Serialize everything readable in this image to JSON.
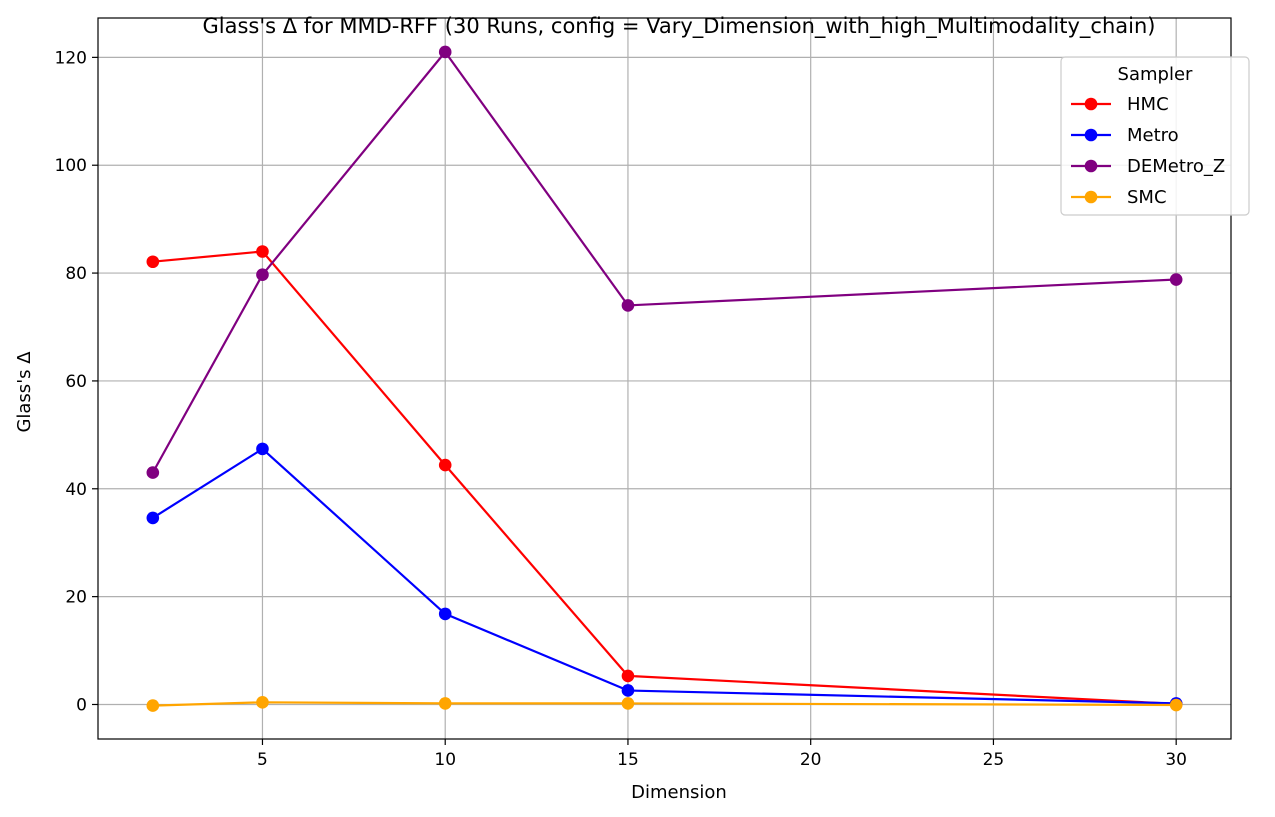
{
  "chart_data": {
    "type": "line",
    "title": "Glass's Δ for MMD-RFF (30 Runs, config = Vary_Dimension_with_high_Multimodality_chain)",
    "xlabel": "Dimension",
    "ylabel": "Glass's Δ",
    "x": [
      2,
      5,
      10,
      15,
      30
    ],
    "xlim": [
      0.5,
      31.5
    ],
    "ylim": [
      -6.4,
      127.3
    ],
    "xticks": [
      5,
      10,
      15,
      20,
      25,
      30
    ],
    "yticks": [
      0,
      20,
      40,
      60,
      80,
      100,
      120
    ],
    "grid": true,
    "legend": {
      "title": "Sampler",
      "placement": "top-right"
    },
    "series": [
      {
        "name": "HMC",
        "color": "#ff0000",
        "values": [
          82.1,
          84.0,
          44.4,
          5.3,
          0.1
        ]
      },
      {
        "name": "Metro",
        "color": "#0000ff",
        "values": [
          34.6,
          47.4,
          16.8,
          2.6,
          0.2
        ]
      },
      {
        "name": "DEMetro_Z",
        "color": "#800080",
        "values": [
          43.0,
          79.7,
          121.0,
          74.0,
          78.8
        ]
      },
      {
        "name": "SMC",
        "color": "#ffa500",
        "values": [
          -0.2,
          0.4,
          0.2,
          0.2,
          -0.1
        ]
      }
    ]
  }
}
